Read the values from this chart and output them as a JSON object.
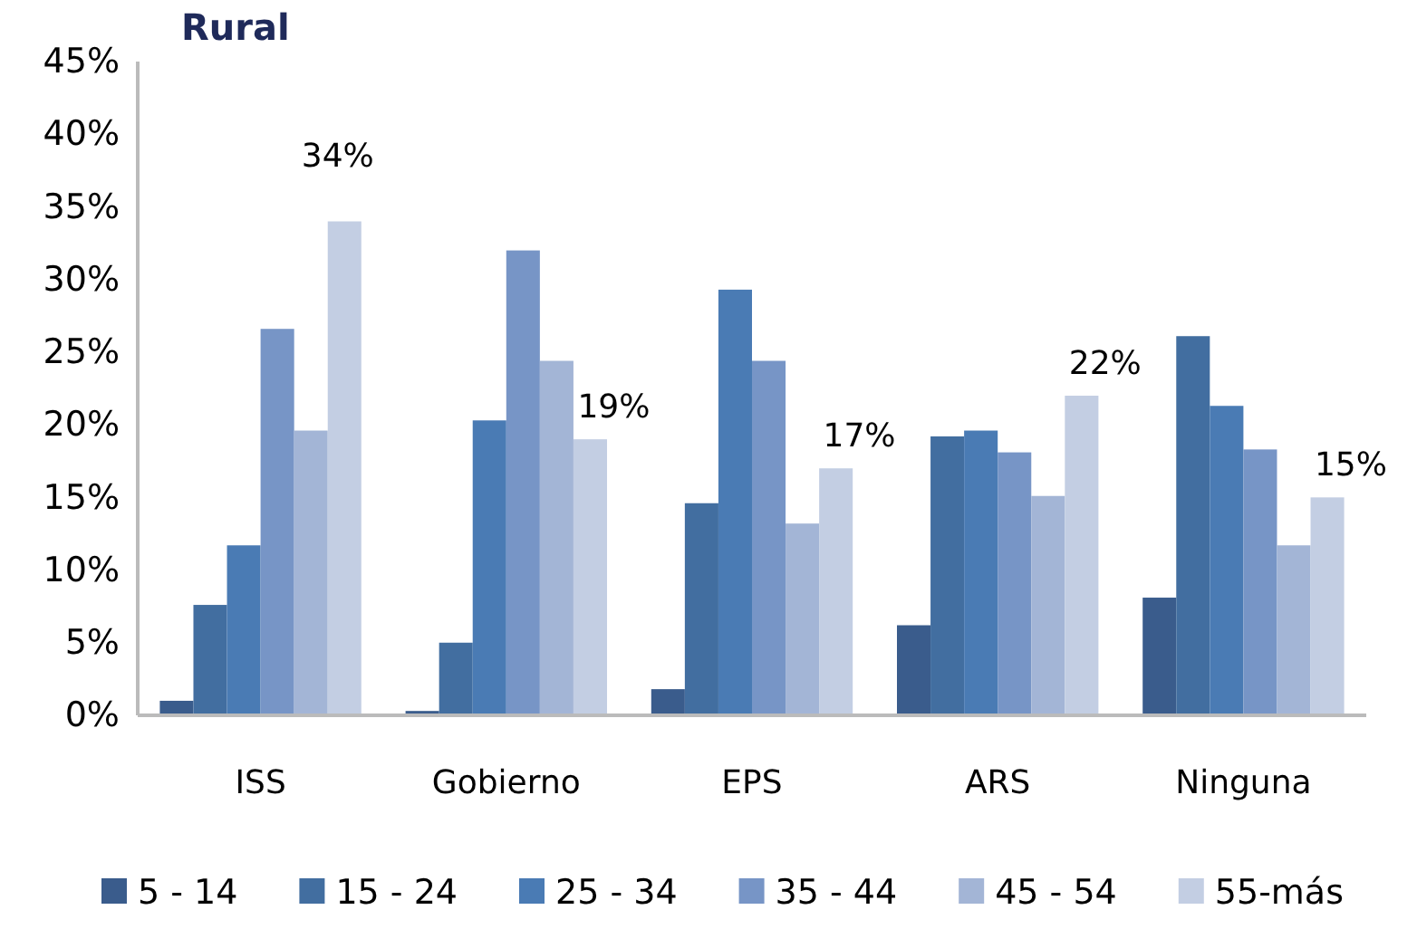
{
  "chart_data": {
    "type": "bar",
    "title": "Rural",
    "categories": [
      "ISS",
      "Gobierno",
      "EPS",
      "ARS",
      "Ninguna"
    ],
    "series": [
      {
        "name": "5 - 14",
        "color": "#3a5c8c",
        "values": [
          1.0,
          0.3,
          1.8,
          6.2,
          8.1
        ]
      },
      {
        "name": "15 - 24",
        "color": "#426ea0",
        "values": [
          7.6,
          5.0,
          14.6,
          19.2,
          26.1
        ]
      },
      {
        "name": "25 - 34",
        "color": "#4a7bb4",
        "values": [
          11.7,
          20.3,
          29.3,
          19.6,
          21.3
        ]
      },
      {
        "name": "35 - 44",
        "color": "#7795c6",
        "values": [
          26.6,
          32.0,
          24.4,
          18.1,
          18.3
        ]
      },
      {
        "name": "45 - 54",
        "color": "#a3b5d6",
        "values": [
          19.6,
          24.4,
          13.2,
          15.1,
          11.7
        ]
      },
      {
        "name": "55-más",
        "color": "#c3cee3",
        "values": [
          34,
          19,
          17,
          22,
          15
        ],
        "value_labels": [
          "34%",
          "19%",
          "17%",
          "22%",
          "15%"
        ]
      }
    ],
    "ylim": [
      0,
      45
    ],
    "yticks": [
      {
        "value": 0,
        "label": "0%"
      },
      {
        "value": 5,
        "label": "5%"
      },
      {
        "value": 10,
        "label": "10%"
      },
      {
        "value": 15,
        "label": "15%"
      },
      {
        "value": 20,
        "label": "20%"
      },
      {
        "value": 25,
        "label": "25%"
      },
      {
        "value": 30,
        "label": "30%"
      },
      {
        "value": 35,
        "label": "35%"
      },
      {
        "value": 40,
        "label": "40%"
      },
      {
        "value": 45,
        "label": "45%"
      }
    ],
    "grid": false,
    "legend": "bottom"
  }
}
